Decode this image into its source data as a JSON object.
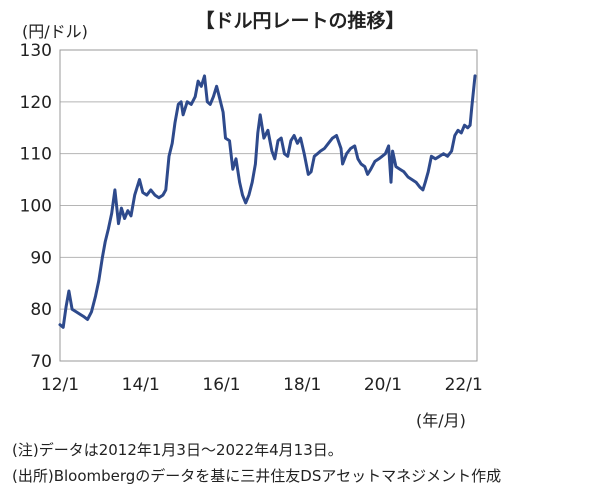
{
  "title": "【ドル円レートの推移】",
  "y_unit": "(円/ドル)",
  "x_unit": "(年/月)",
  "notes": {
    "note1": "(注)データは2012年1月3日～2022年4月13日。",
    "note2": "(出所)Bloombergのデータを基に三井住友DSアセットマネジメント作成"
  },
  "chart_data": {
    "type": "line",
    "title": "【ドル円レートの推移】",
    "xlabel": "(年/月)",
    "ylabel": "(円/ドル)",
    "ylim": [
      70,
      130
    ],
    "xlim": [
      2012.0,
      2022.33
    ],
    "yticks": [
      70,
      80,
      90,
      100,
      110,
      120,
      130
    ],
    "xticks": [
      {
        "value": 2012.0,
        "label": "12/1"
      },
      {
        "value": 2014.0,
        "label": "14/1"
      },
      {
        "value": 2016.0,
        "label": "16/1"
      },
      {
        "value": 2018.0,
        "label": "18/1"
      },
      {
        "value": 2020.0,
        "label": "20/1"
      },
      {
        "value": 2022.0,
        "label": "22/1"
      }
    ],
    "grid": true,
    "line_color": "#2e4a8c",
    "series": [
      {
        "values": [
          [
            2012.0,
            77.0
          ],
          [
            2012.08,
            76.5
          ],
          [
            2012.15,
            80.5
          ],
          [
            2012.22,
            83.5
          ],
          [
            2012.3,
            80.0
          ],
          [
            2012.4,
            79.5
          ],
          [
            2012.5,
            79.0
          ],
          [
            2012.6,
            78.5
          ],
          [
            2012.68,
            78.0
          ],
          [
            2012.78,
            79.5
          ],
          [
            2012.88,
            82.5
          ],
          [
            2012.96,
            85.5
          ],
          [
            2013.05,
            90.0
          ],
          [
            2013.12,
            93.0
          ],
          [
            2013.2,
            95.5
          ],
          [
            2013.28,
            98.5
          ],
          [
            2013.36,
            103.0
          ],
          [
            2013.45,
            96.5
          ],
          [
            2013.52,
            99.5
          ],
          [
            2013.6,
            97.5
          ],
          [
            2013.68,
            99.0
          ],
          [
            2013.76,
            98.0
          ],
          [
            2013.85,
            102.0
          ],
          [
            2013.97,
            105.0
          ],
          [
            2014.05,
            102.5
          ],
          [
            2014.15,
            102.0
          ],
          [
            2014.25,
            103.0
          ],
          [
            2014.35,
            102.0
          ],
          [
            2014.45,
            101.5
          ],
          [
            2014.55,
            102.0
          ],
          [
            2014.62,
            103.0
          ],
          [
            2014.7,
            109.5
          ],
          [
            2014.78,
            112.0
          ],
          [
            2014.85,
            116.0
          ],
          [
            2014.93,
            119.5
          ],
          [
            2015.0,
            120.0
          ],
          [
            2015.05,
            117.5
          ],
          [
            2015.15,
            120.0
          ],
          [
            2015.25,
            119.5
          ],
          [
            2015.35,
            121.0
          ],
          [
            2015.42,
            124.0
          ],
          [
            2015.5,
            123.0
          ],
          [
            2015.58,
            125.0
          ],
          [
            2015.65,
            120.0
          ],
          [
            2015.72,
            119.5
          ],
          [
            2015.8,
            121.0
          ],
          [
            2015.88,
            123.0
          ],
          [
            2015.96,
            120.5
          ],
          [
            2016.04,
            118.0
          ],
          [
            2016.1,
            113.0
          ],
          [
            2016.2,
            112.5
          ],
          [
            2016.28,
            107.0
          ],
          [
            2016.36,
            109.0
          ],
          [
            2016.45,
            104.5
          ],
          [
            2016.52,
            102.0
          ],
          [
            2016.6,
            100.5
          ],
          [
            2016.68,
            102.0
          ],
          [
            2016.76,
            104.5
          ],
          [
            2016.84,
            108.0
          ],
          [
            2016.9,
            114.0
          ],
          [
            2016.96,
            117.5
          ],
          [
            2017.05,
            113.0
          ],
          [
            2017.15,
            114.5
          ],
          [
            2017.25,
            110.5
          ],
          [
            2017.32,
            109.0
          ],
          [
            2017.4,
            112.5
          ],
          [
            2017.48,
            113.0
          ],
          [
            2017.56,
            110.0
          ],
          [
            2017.64,
            109.5
          ],
          [
            2017.72,
            112.5
          ],
          [
            2017.8,
            113.5
          ],
          [
            2017.88,
            112.0
          ],
          [
            2017.96,
            113.0
          ],
          [
            2018.05,
            110.0
          ],
          [
            2018.15,
            106.0
          ],
          [
            2018.22,
            106.5
          ],
          [
            2018.3,
            109.5
          ],
          [
            2018.38,
            110.0
          ],
          [
            2018.45,
            110.5
          ],
          [
            2018.55,
            111.0
          ],
          [
            2018.65,
            112.0
          ],
          [
            2018.75,
            113.0
          ],
          [
            2018.85,
            113.5
          ],
          [
            2018.96,
            111.0
          ],
          [
            2019.0,
            108.0
          ],
          [
            2019.1,
            110.0
          ],
          [
            2019.2,
            111.0
          ],
          [
            2019.3,
            111.5
          ],
          [
            2019.38,
            109.0
          ],
          [
            2019.46,
            108.0
          ],
          [
            2019.55,
            107.5
          ],
          [
            2019.62,
            106.0
          ],
          [
            2019.7,
            107.0
          ],
          [
            2019.8,
            108.5
          ],
          [
            2019.9,
            109.0
          ],
          [
            2019.98,
            109.5
          ],
          [
            2020.06,
            110.0
          ],
          [
            2020.14,
            111.5
          ],
          [
            2020.2,
            104.5
          ],
          [
            2020.24,
            110.5
          ],
          [
            2020.32,
            107.5
          ],
          [
            2020.42,
            107.0
          ],
          [
            2020.52,
            106.5
          ],
          [
            2020.62,
            105.5
          ],
          [
            2020.72,
            105.0
          ],
          [
            2020.82,
            104.5
          ],
          [
            2020.92,
            103.5
          ],
          [
            2020.99,
            103.0
          ],
          [
            2021.05,
            104.5
          ],
          [
            2021.12,
            106.5
          ],
          [
            2021.2,
            109.5
          ],
          [
            2021.3,
            109.0
          ],
          [
            2021.4,
            109.5
          ],
          [
            2021.5,
            110.0
          ],
          [
            2021.6,
            109.5
          ],
          [
            2021.7,
            110.5
          ],
          [
            2021.78,
            113.5
          ],
          [
            2021.86,
            114.5
          ],
          [
            2021.94,
            114.0
          ],
          [
            2022.02,
            115.5
          ],
          [
            2022.1,
            115.0
          ],
          [
            2022.16,
            115.5
          ],
          [
            2022.2,
            119.0
          ],
          [
            2022.24,
            122.0
          ],
          [
            2022.28,
            125.0
          ]
        ]
      }
    ]
  }
}
